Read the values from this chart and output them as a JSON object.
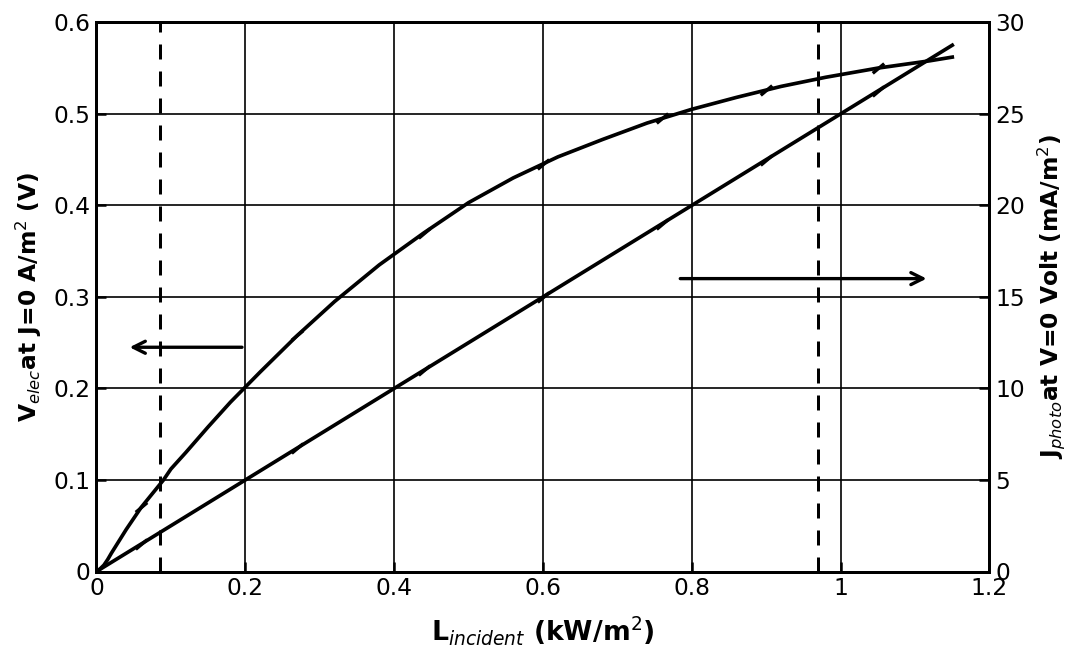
{
  "title": "",
  "xlabel": "L$_{incident}$ (kW/m$^2$)",
  "ylabel_left": "V$_{elec}$at J=0 A/m$^2$ (V)",
  "ylabel_right": "J$_{photo}$at V=0 Volt (mA/m$^2$)",
  "xlim": [
    0,
    1.2
  ],
  "ylim_left": [
    0,
    0.6
  ],
  "ylim_right": [
    0,
    30
  ],
  "xticks": [
    0,
    0.2,
    0.4,
    0.6,
    0.8,
    1.0,
    1.2
  ],
  "yticks_left": [
    0,
    0.1,
    0.2,
    0.3,
    0.4,
    0.5,
    0.6
  ],
  "yticks_right": [
    0,
    5,
    10,
    15,
    20,
    25,
    30
  ],
  "dashed_vline_x1": 0.085,
  "dashed_vline_x2": 0.97,
  "velec_x": [
    0.0,
    0.005,
    0.01,
    0.015,
    0.02,
    0.03,
    0.04,
    0.05,
    0.06,
    0.07,
    0.08,
    0.09,
    0.1,
    0.12,
    0.15,
    0.18,
    0.22,
    0.27,
    0.32,
    0.38,
    0.44,
    0.5,
    0.56,
    0.62,
    0.68,
    0.74,
    0.8,
    0.86,
    0.92,
    0.98,
    1.05,
    1.12,
    1.15
  ],
  "velec_y": [
    0.0,
    0.003,
    0.007,
    0.013,
    0.02,
    0.033,
    0.046,
    0.058,
    0.07,
    0.08,
    0.09,
    0.1,
    0.112,
    0.13,
    0.158,
    0.185,
    0.218,
    0.258,
    0.295,
    0.335,
    0.37,
    0.403,
    0.43,
    0.453,
    0.472,
    0.49,
    0.505,
    0.518,
    0.53,
    0.54,
    0.55,
    0.558,
    0.562
  ],
  "jphoto_x": [
    0.0,
    0.1,
    0.2,
    0.3,
    0.4,
    0.5,
    0.6,
    0.7,
    0.8,
    0.9,
    1.0,
    1.1,
    1.15
  ],
  "jphoto_y": [
    0.0,
    2.5,
    5.0,
    7.5,
    10.0,
    12.5,
    15.0,
    17.5,
    20.0,
    22.5,
    25.0,
    27.5,
    28.75
  ],
  "marker_velec_x": [
    0.06,
    0.27,
    0.44,
    0.6,
    0.76,
    0.9,
    1.05
  ],
  "marker_jphoto_x": [
    0.06,
    0.27,
    0.44,
    0.6,
    0.76,
    0.9,
    1.05
  ],
  "background_color": "#ffffff",
  "line_color": "#000000",
  "figwidth": 9.0,
  "figheight": 5.5,
  "dpi": 120
}
